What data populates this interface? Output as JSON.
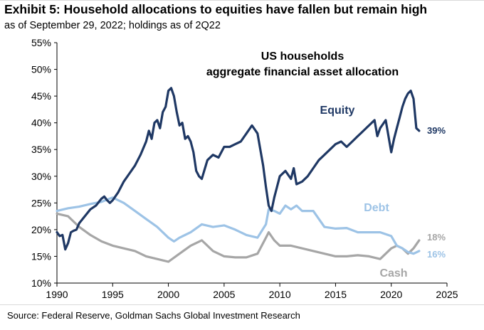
{
  "header": {
    "title": "Exhibit 5: Household allocations to equities have fallen but remain high",
    "subtitle": "as of September 29, 2022; holdings as of 2Q22"
  },
  "footer": {
    "source": "Source: Federal Reserve, Goldman Sachs Global Investment Research"
  },
  "chart_data": {
    "type": "line",
    "title_line1": "US households",
    "title_line2": "aggregate financial asset allocation",
    "xlim": [
      1990,
      2025
    ],
    "ylim": [
      10,
      55
    ],
    "x_ticks": [
      1990,
      1995,
      2000,
      2005,
      2010,
      2015,
      2020,
      2025
    ],
    "x_tick_labels": [
      "1990",
      "1995",
      "2000",
      "2005",
      "2010",
      "2015",
      "2020",
      "2025"
    ],
    "y_ticks": [
      10,
      15,
      20,
      25,
      30,
      35,
      40,
      45,
      50,
      55
    ],
    "y_tick_labels": [
      "10%",
      "15%",
      "20%",
      "25%",
      "30%",
      "35%",
      "40%",
      "45%",
      "50%",
      "55%"
    ],
    "series": [
      {
        "name": "Equity",
        "color": "#1f3864",
        "end_label": "39%",
        "points": [
          [
            1990.0,
            19.5
          ],
          [
            1990.25,
            18.8
          ],
          [
            1990.5,
            19.0
          ],
          [
            1990.75,
            16.3
          ],
          [
            1991.0,
            17.5
          ],
          [
            1991.25,
            19.5
          ],
          [
            1991.5,
            19.8
          ],
          [
            1991.75,
            20.0
          ],
          [
            1992.0,
            21.2
          ],
          [
            1992.5,
            22.5
          ],
          [
            1993.0,
            23.8
          ],
          [
            1993.5,
            24.5
          ],
          [
            1994.0,
            25.8
          ],
          [
            1994.25,
            26.2
          ],
          [
            1994.5,
            25.5
          ],
          [
            1994.75,
            25.0
          ],
          [
            1995.0,
            25.5
          ],
          [
            1995.5,
            27.0
          ],
          [
            1996.0,
            29.0
          ],
          [
            1996.5,
            30.5
          ],
          [
            1997.0,
            32.0
          ],
          [
            1997.5,
            34.0
          ],
          [
            1998.0,
            36.5
          ],
          [
            1998.25,
            38.5
          ],
          [
            1998.5,
            37.0
          ],
          [
            1998.75,
            40.0
          ],
          [
            1999.0,
            40.5
          ],
          [
            1999.25,
            39.0
          ],
          [
            1999.5,
            42.0
          ],
          [
            1999.75,
            43.0
          ],
          [
            2000.0,
            46.0
          ],
          [
            2000.25,
            46.5
          ],
          [
            2000.5,
            45.0
          ],
          [
            2000.75,
            42.0
          ],
          [
            2001.0,
            39.5
          ],
          [
            2001.25,
            40.0
          ],
          [
            2001.5,
            37.0
          ],
          [
            2001.75,
            37.5
          ],
          [
            2002.0,
            36.5
          ],
          [
            2002.25,
            34.5
          ],
          [
            2002.5,
            31.0
          ],
          [
            2002.75,
            30.0
          ],
          [
            2003.0,
            29.5
          ],
          [
            2003.5,
            33.0
          ],
          [
            2004.0,
            34.0
          ],
          [
            2004.5,
            33.5
          ],
          [
            2005.0,
            35.5
          ],
          [
            2005.5,
            35.5
          ],
          [
            2006.0,
            36.0
          ],
          [
            2006.5,
            36.5
          ],
          [
            2007.0,
            38.0
          ],
          [
            2007.5,
            39.5
          ],
          [
            2008.0,
            38.0
          ],
          [
            2008.5,
            32.0
          ],
          [
            2008.75,
            28.0
          ],
          [
            2009.0,
            24.5
          ],
          [
            2009.25,
            23.5
          ],
          [
            2009.5,
            26.0
          ],
          [
            2010.0,
            30.0
          ],
          [
            2010.5,
            31.0
          ],
          [
            2011.0,
            29.5
          ],
          [
            2011.25,
            31.5
          ],
          [
            2011.5,
            28.5
          ],
          [
            2012.0,
            29.0
          ],
          [
            2012.5,
            30.0
          ],
          [
            2013.0,
            31.5
          ],
          [
            2013.5,
            33.0
          ],
          [
            2014.0,
            34.0
          ],
          [
            2014.5,
            35.0
          ],
          [
            2015.0,
            36.0
          ],
          [
            2015.5,
            36.5
          ],
          [
            2016.0,
            35.5
          ],
          [
            2016.5,
            36.5
          ],
          [
            2017.0,
            37.5
          ],
          [
            2017.5,
            38.5
          ],
          [
            2018.0,
            39.5
          ],
          [
            2018.5,
            40.5
          ],
          [
            2018.75,
            37.5
          ],
          [
            2019.0,
            39.0
          ],
          [
            2019.5,
            40.5
          ],
          [
            2020.0,
            34.5
          ],
          [
            2020.25,
            37.0
          ],
          [
            2020.5,
            39.0
          ],
          [
            2020.75,
            41.0
          ],
          [
            2021.0,
            43.0
          ],
          [
            2021.25,
            44.5
          ],
          [
            2021.5,
            45.5
          ],
          [
            2021.75,
            46.0
          ],
          [
            2022.0,
            44.5
          ],
          [
            2022.25,
            39.0
          ],
          [
            2022.5,
            38.5
          ]
        ]
      },
      {
        "name": "Debt",
        "color": "#9dc3e6",
        "end_label": "16%",
        "points": [
          [
            1990.0,
            23.5
          ],
          [
            1991.0,
            24.0
          ],
          [
            1992.0,
            24.3
          ],
          [
            1993.0,
            24.8
          ],
          [
            1994.0,
            25.2
          ],
          [
            1995.0,
            26.0
          ],
          [
            1996.0,
            25.0
          ],
          [
            1997.0,
            23.5
          ],
          [
            1998.0,
            22.0
          ],
          [
            1999.0,
            20.5
          ],
          [
            2000.0,
            18.5
          ],
          [
            2000.5,
            17.8
          ],
          [
            2001.0,
            18.5
          ],
          [
            2002.0,
            19.5
          ],
          [
            2003.0,
            21.0
          ],
          [
            2004.0,
            20.5
          ],
          [
            2005.0,
            20.8
          ],
          [
            2006.0,
            20.0
          ],
          [
            2007.0,
            19.0
          ],
          [
            2008.0,
            18.5
          ],
          [
            2008.75,
            21.0
          ],
          [
            2009.0,
            23.8
          ],
          [
            2009.5,
            23.5
          ],
          [
            2010.0,
            23.0
          ],
          [
            2010.5,
            24.5
          ],
          [
            2011.0,
            23.8
          ],
          [
            2011.5,
            24.5
          ],
          [
            2012.0,
            23.5
          ],
          [
            2013.0,
            23.5
          ],
          [
            2014.0,
            20.5
          ],
          [
            2015.0,
            20.2
          ],
          [
            2016.0,
            20.3
          ],
          [
            2017.0,
            19.5
          ],
          [
            2018.0,
            19.5
          ],
          [
            2019.0,
            19.5
          ],
          [
            2020.0,
            18.8
          ],
          [
            2020.5,
            17.0
          ],
          [
            2021.0,
            16.5
          ],
          [
            2021.5,
            15.8
          ],
          [
            2022.0,
            15.5
          ],
          [
            2022.5,
            16.0
          ]
        ]
      },
      {
        "name": "Cash",
        "color": "#a6a6a6",
        "end_label": "18%",
        "points": [
          [
            1990.0,
            23.0
          ],
          [
            1991.0,
            22.5
          ],
          [
            1992.0,
            20.5
          ],
          [
            1993.0,
            19.0
          ],
          [
            1994.0,
            17.8
          ],
          [
            1995.0,
            17.0
          ],
          [
            1996.0,
            16.5
          ],
          [
            1997.0,
            16.0
          ],
          [
            1998.0,
            15.0
          ],
          [
            1999.0,
            14.5
          ],
          [
            2000.0,
            14.0
          ],
          [
            2001.0,
            15.5
          ],
          [
            2002.0,
            17.0
          ],
          [
            2003.0,
            18.0
          ],
          [
            2004.0,
            16.0
          ],
          [
            2005.0,
            15.0
          ],
          [
            2006.0,
            14.8
          ],
          [
            2007.0,
            14.8
          ],
          [
            2008.0,
            15.5
          ],
          [
            2008.75,
            18.5
          ],
          [
            2009.0,
            19.5
          ],
          [
            2009.5,
            18.0
          ],
          [
            2010.0,
            17.0
          ],
          [
            2011.0,
            17.0
          ],
          [
            2012.0,
            16.5
          ],
          [
            2013.0,
            16.0
          ],
          [
            2014.0,
            15.5
          ],
          [
            2015.0,
            15.0
          ],
          [
            2016.0,
            15.0
          ],
          [
            2017.0,
            15.2
          ],
          [
            2018.0,
            15.0
          ],
          [
            2019.0,
            14.5
          ],
          [
            2020.0,
            16.5
          ],
          [
            2020.5,
            17.0
          ],
          [
            2021.0,
            16.5
          ],
          [
            2021.5,
            15.5
          ],
          [
            2022.0,
            16.5
          ],
          [
            2022.5,
            18.0
          ]
        ]
      }
    ]
  }
}
